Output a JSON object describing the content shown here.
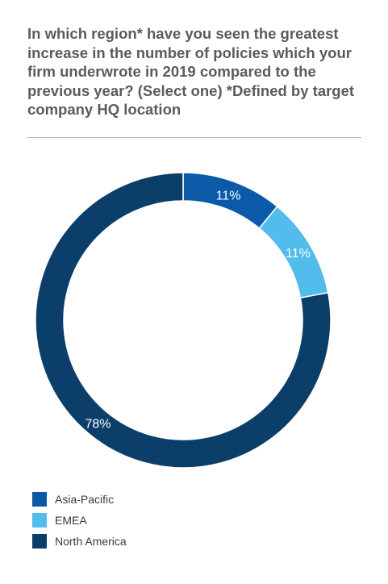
{
  "chart_data": {
    "type": "pie",
    "donut": true,
    "title": "In which region* have you seen the greatest increase in the number of policies which your firm underwrote in 2019 compared to the previous year? (Select one) *Defined by target company HQ location",
    "categories": [
      "Asia-Pacific",
      "EMEA",
      "North America"
    ],
    "values": [
      11,
      11,
      78
    ],
    "labels": [
      "11%",
      "11%",
      "78%"
    ],
    "colors": [
      "#0a5aa8",
      "#52bcec",
      "#0b3f6a"
    ],
    "legend": "bottom-left"
  }
}
